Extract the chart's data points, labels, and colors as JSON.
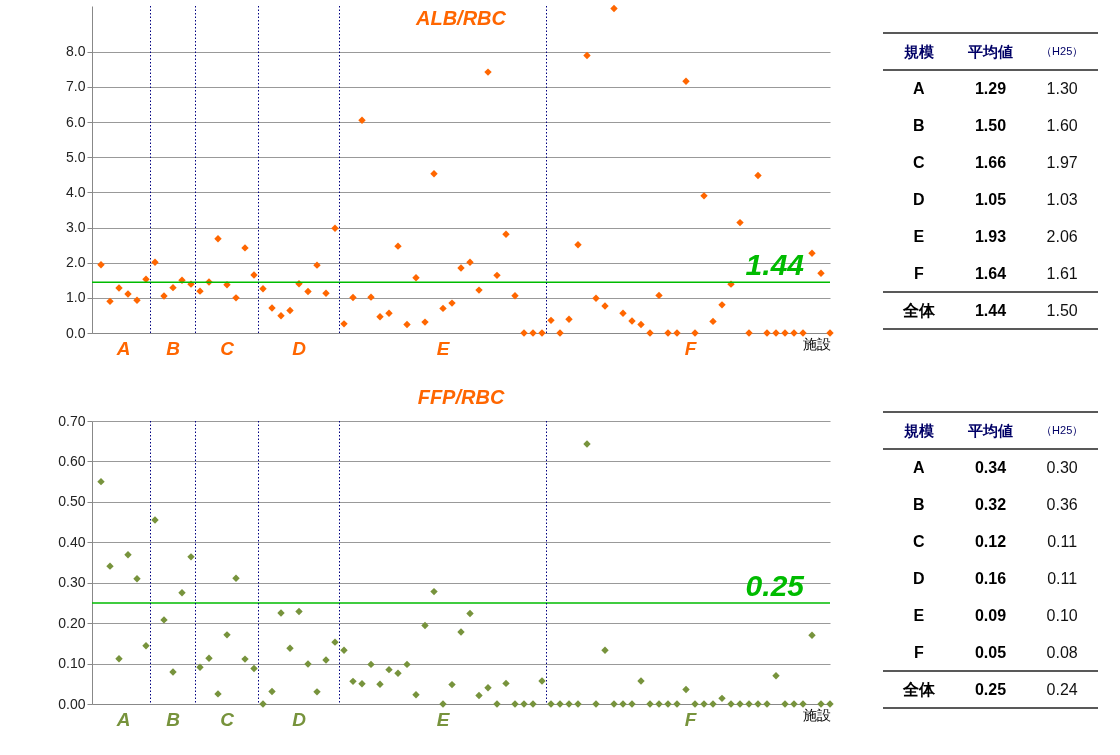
{
  "chart_data": [
    {
      "type": "scatter",
      "title": "ALB/RBC",
      "xlabel": "施設",
      "marker": "diamond",
      "grid": true,
      "tick_labels": "y",
      "categories": [
        null,
        null,
        null,
        null,
        null,
        null,
        null,
        null,
        null,
        null,
        null,
        null,
        null,
        null,
        null,
        null,
        null,
        null,
        null,
        null,
        null,
        null,
        null,
        null,
        null,
        null,
        null,
        null,
        null,
        null,
        null,
        null,
        null,
        null,
        null,
        null,
        null,
        null,
        null,
        null,
        null,
        null,
        null,
        null,
        null,
        null,
        null,
        null,
        null,
        null,
        null,
        null,
        null,
        null,
        null,
        null,
        null,
        null,
        null,
        null,
        null,
        null,
        null,
        null,
        null,
        null,
        null,
        null,
        null,
        null,
        null,
        null,
        null,
        null,
        null,
        null,
        null,
        null,
        null,
        null,
        null,
        null
      ],
      "series": [
        {
          "name": "A",
          "color": "#ff6600",
          "values": [
            1.94,
            0.9,
            1.28,
            1.11,
            0.93,
            1.53,
            null,
            null,
            null,
            null,
            null,
            null,
            null,
            null,
            null,
            null,
            null,
            null,
            null,
            null,
            null,
            null,
            null,
            null,
            null,
            null,
            null,
            null,
            null,
            null,
            null,
            null,
            null,
            null,
            null,
            null,
            null,
            null,
            null,
            null,
            null,
            null,
            null,
            null,
            null,
            null,
            null,
            null,
            null,
            null,
            null,
            null,
            null,
            null,
            null,
            null,
            null,
            null,
            null,
            null,
            null,
            null,
            null,
            null,
            null,
            null,
            null,
            null,
            null,
            null,
            null,
            null,
            null,
            null,
            null,
            null,
            null,
            null,
            null,
            null,
            null,
            null
          ]
        },
        {
          "name": "B",
          "color": "#ff6600",
          "values": [
            null,
            null,
            null,
            null,
            null,
            null,
            2.01,
            1.05,
            1.29,
            1.5,
            1.39,
            null,
            null,
            null,
            null,
            null,
            null,
            null,
            null,
            null,
            null,
            null,
            null,
            null,
            null,
            null,
            null,
            null,
            null,
            null,
            null,
            null,
            null,
            null,
            null,
            null,
            null,
            null,
            null,
            null,
            null,
            null,
            null,
            null,
            null,
            null,
            null,
            null,
            null,
            null,
            null,
            null,
            null,
            null,
            null,
            null,
            null,
            null,
            null,
            null,
            null,
            null,
            null,
            null,
            null,
            null,
            null,
            null,
            null,
            null,
            null,
            null,
            null,
            null,
            null,
            null,
            null,
            null,
            null,
            null,
            null,
            null
          ]
        },
        {
          "name": "C",
          "color": "#ff6600",
          "values": [
            null,
            null,
            null,
            null,
            null,
            null,
            null,
            null,
            null,
            null,
            null,
            1.19,
            1.45,
            2.68,
            1.37,
            1.0,
            2.42,
            1.65,
            null,
            null,
            null,
            null,
            null,
            null,
            null,
            null,
            null,
            null,
            null,
            null,
            null,
            null,
            null,
            null,
            null,
            null,
            null,
            null,
            null,
            null,
            null,
            null,
            null,
            null,
            null,
            null,
            null,
            null,
            null,
            null,
            null,
            null,
            null,
            null,
            null,
            null,
            null,
            null,
            null,
            null,
            null,
            null,
            null,
            null,
            null,
            null,
            null,
            null,
            null,
            null,
            null,
            null,
            null,
            null,
            null,
            null,
            null,
            null,
            null,
            null,
            null,
            null
          ]
        },
        {
          "name": "D",
          "color": "#ff6600",
          "values": [
            null,
            null,
            null,
            null,
            null,
            null,
            null,
            null,
            null,
            null,
            null,
            null,
            null,
            null,
            null,
            null,
            null,
            null,
            1.26,
            0.71,
            0.49,
            0.64,
            1.4,
            1.18,
            1.93,
            1.13,
            2.98,
            null,
            null,
            null,
            null,
            null,
            null,
            null,
            null,
            null,
            null,
            null,
            null,
            null,
            null,
            null,
            null,
            null,
            null,
            null,
            null,
            null,
            null,
            null,
            null,
            null,
            null,
            null,
            null,
            null,
            null,
            null,
            null,
            null,
            null,
            null,
            null,
            null,
            null,
            null,
            null,
            null,
            null,
            null,
            null,
            null,
            null,
            null,
            null,
            null,
            null,
            null,
            null,
            null,
            null,
            null
          ]
        },
        {
          "name": "E",
          "color": "#ff6600",
          "values": [
            null,
            null,
            null,
            null,
            null,
            null,
            null,
            null,
            null,
            null,
            null,
            null,
            null,
            null,
            null,
            null,
            null,
            null,
            null,
            null,
            null,
            null,
            null,
            null,
            null,
            null,
            null,
            0.26,
            1.01,
            6.05,
            1.02,
            0.46,
            0.56,
            2.47,
            0.24,
            1.57,
            0.31,
            4.53,
            0.7,
            0.85,
            1.85,
            2.01,
            1.22,
            7.42,
            1.64,
            2.81,
            1.06,
            0,
            0,
            0,
            null,
            null,
            null,
            null,
            null,
            null,
            null,
            null,
            null,
            null,
            null,
            null,
            null,
            null,
            null,
            null,
            null,
            null,
            null,
            null,
            null,
            null,
            null,
            null,
            null,
            null,
            null,
            null,
            null,
            null,
            null,
            null
          ]
        },
        {
          "name": "F",
          "color": "#ff6600",
          "values": [
            null,
            null,
            null,
            null,
            null,
            null,
            null,
            null,
            null,
            null,
            null,
            null,
            null,
            null,
            null,
            null,
            null,
            null,
            null,
            null,
            null,
            null,
            null,
            null,
            null,
            null,
            null,
            null,
            null,
            null,
            null,
            null,
            null,
            null,
            null,
            null,
            null,
            null,
            null,
            null,
            null,
            null,
            null,
            null,
            null,
            null,
            null,
            null,
            null,
            null,
            0.36,
            0,
            0.39,
            2.51,
            7.89,
            0.99,
            0.77,
            9.23,
            0.56,
            0.34,
            0.24,
            0,
            1.07,
            0,
            0,
            7.16,
            0,
            3.9,
            0.33,
            0.8,
            1.39,
            3.14,
            0,
            4.48,
            0,
            0,
            0,
            0,
            0,
            2.27,
            1.7,
            0
          ]
        }
      ],
      "ylim": [
        0,
        9.3
      ],
      "yticks": [
        {
          "value": 0,
          "label": "0.0"
        },
        {
          "value": 1,
          "label": "1.0"
        },
        {
          "value": 2,
          "label": "2.0"
        },
        {
          "value": 3,
          "label": "3.0"
        },
        {
          "value": 4,
          "label": "4.0"
        },
        {
          "value": 5,
          "label": "5.0"
        },
        {
          "value": 6,
          "label": "6.0"
        },
        {
          "value": 7,
          "label": "7.0"
        },
        {
          "value": 8,
          "label": "8.0"
        }
      ],
      "ref_lines": [
        {
          "axis": "y",
          "value": 1.44,
          "label": "1.44",
          "color": "#00bb00"
        }
      ]
    },
    {
      "type": "other",
      "annotations": [
        "規模",
        "平均値",
        "（H25）",
        "A",
        "1.29",
        "1.30",
        "B",
        "1.50",
        "1.60",
        "C",
        "1.66",
        "1.97",
        "D",
        "1.05",
        "1.03",
        "E",
        "1.93",
        "2.06",
        "F",
        "1.64",
        "1.61",
        "全体",
        "1.44",
        "1.50"
      ]
    },
    {
      "type": "scatter",
      "title": "FFP/RBC",
      "xlabel": "施設",
      "marker": "diamond",
      "grid": true,
      "tick_labels": "y",
      "categories": [
        null,
        null,
        null,
        null,
        null,
        null,
        null,
        null,
        null,
        null,
        null,
        null,
        null,
        null,
        null,
        null,
        null,
        null,
        null,
        null,
        null,
        null,
        null,
        null,
        null,
        null,
        null,
        null,
        null,
        null,
        null,
        null,
        null,
        null,
        null,
        null,
        null,
        null,
        null,
        null,
        null,
        null,
        null,
        null,
        null,
        null,
        null,
        null,
        null,
        null,
        null,
        null,
        null,
        null,
        null,
        null,
        null,
        null,
        null,
        null,
        null,
        null,
        null,
        null,
        null,
        null,
        null,
        null,
        null,
        null,
        null,
        null,
        null,
        null,
        null,
        null,
        null,
        null,
        null,
        null,
        null,
        null
      ],
      "series": [
        {
          "name": "A",
          "color": "#77933c",
          "values": [
            0.55,
            0.341,
            0.112,
            0.369,
            0.31,
            0.144,
            null,
            null,
            null,
            null,
            null,
            null,
            null,
            null,
            null,
            null,
            null,
            null,
            null,
            null,
            null,
            null,
            null,
            null,
            null,
            null,
            null,
            null,
            null,
            null,
            null,
            null,
            null,
            null,
            null,
            null,
            null,
            null,
            null,
            null,
            null,
            null,
            null,
            null,
            null,
            null,
            null,
            null,
            null,
            null,
            null,
            null,
            null,
            null,
            null,
            null,
            null,
            null,
            null,
            null,
            null,
            null,
            null,
            null,
            null,
            null,
            null,
            null,
            null,
            null,
            null,
            null,
            null,
            null,
            null,
            null,
            null,
            null,
            null,
            null,
            null,
            null
          ]
        },
        {
          "name": "B",
          "color": "#77933c",
          "values": [
            null,
            null,
            null,
            null,
            null,
            null,
            0.455,
            0.208,
            0.079,
            0.275,
            0.364,
            null,
            null,
            null,
            null,
            null,
            null,
            null,
            null,
            null,
            null,
            null,
            null,
            null,
            null,
            null,
            null,
            null,
            null,
            null,
            null,
            null,
            null,
            null,
            null,
            null,
            null,
            null,
            null,
            null,
            null,
            null,
            null,
            null,
            null,
            null,
            null,
            null,
            null,
            null,
            null,
            null,
            null,
            null,
            null,
            null,
            null,
            null,
            null,
            null,
            null,
            null,
            null,
            null,
            null,
            null,
            null,
            null,
            null,
            null,
            null,
            null,
            null,
            null,
            null,
            null,
            null,
            null,
            null,
            null,
            null,
            null
          ]
        },
        {
          "name": "C",
          "color": "#77933c",
          "values": [
            null,
            null,
            null,
            null,
            null,
            null,
            null,
            null,
            null,
            null,
            null,
            0.091,
            0.113,
            0.025,
            0.171,
            0.311,
            0.111,
            0.088,
            null,
            null,
            null,
            null,
            null,
            null,
            null,
            null,
            null,
            null,
            null,
            null,
            null,
            null,
            null,
            null,
            null,
            null,
            null,
            null,
            null,
            null,
            null,
            null,
            null,
            null,
            null,
            null,
            null,
            null,
            null,
            null,
            null,
            null,
            null,
            null,
            null,
            null,
            null,
            null,
            null,
            null,
            null,
            null,
            null,
            null,
            null,
            null,
            null,
            null,
            null,
            null,
            null,
            null,
            null,
            null,
            null,
            null,
            null,
            null,
            null,
            null,
            null,
            null
          ]
        },
        {
          "name": "D",
          "color": "#77933c",
          "values": [
            null,
            null,
            null,
            null,
            null,
            null,
            null,
            null,
            null,
            null,
            null,
            null,
            null,
            null,
            null,
            null,
            null,
            null,
            0,
            0.031,
            0.225,
            0.138,
            0.229,
            0.099,
            0.03,
            0.109,
            0.153,
            null,
            null,
            null,
            null,
            null,
            null,
            null,
            null,
            null,
            null,
            null,
            null,
            null,
            null,
            null,
            null,
            null,
            null,
            null,
            null,
            null,
            null,
            null,
            null,
            null,
            null,
            null,
            null,
            null,
            null,
            null,
            null,
            null,
            null,
            null,
            null,
            null,
            null,
            null,
            null,
            null,
            null,
            null,
            null,
            null,
            null,
            null,
            null,
            null,
            null,
            null,
            null,
            null,
            null,
            null
          ]
        },
        {
          "name": "E",
          "color": "#77933c",
          "values": [
            null,
            null,
            null,
            null,
            null,
            null,
            null,
            null,
            null,
            null,
            null,
            null,
            null,
            null,
            null,
            null,
            null,
            null,
            null,
            null,
            null,
            null,
            null,
            null,
            null,
            null,
            null,
            0.133,
            0.056,
            0.05,
            0.098,
            0.049,
            0.085,
            0.076,
            0.098,
            0.023,
            0.194,
            0.278,
            0,
            0.048,
            0.178,
            0.224,
            0.021,
            0.04,
            0,
            0.051,
            0,
            0,
            0,
            0.057,
            null,
            null,
            null,
            null,
            null,
            null,
            null,
            null,
            null,
            null,
            null,
            null,
            null,
            null,
            null,
            null,
            null,
            null,
            null,
            null,
            null,
            null,
            null,
            null,
            null,
            null,
            null,
            null,
            null,
            null,
            null,
            null
          ]
        },
        {
          "name": "F",
          "color": "#77933c",
          "values": [
            null,
            null,
            null,
            null,
            null,
            null,
            null,
            null,
            null,
            null,
            null,
            null,
            null,
            null,
            null,
            null,
            null,
            null,
            null,
            null,
            null,
            null,
            null,
            null,
            null,
            null,
            null,
            null,
            null,
            null,
            null,
            null,
            null,
            null,
            null,
            null,
            null,
            null,
            null,
            null,
            null,
            null,
            null,
            null,
            null,
            null,
            null,
            null,
            null,
            null,
            0,
            0,
            0,
            0,
            0.643,
            0,
            0.133,
            0,
            0,
            0,
            0.057,
            0,
            0,
            0,
            0,
            0.036,
            0,
            0,
            0,
            0.014,
            0,
            0,
            0,
            0,
            0,
            0.07,
            0,
            0,
            0,
            0.17,
            0,
            0
          ]
        }
      ],
      "ylim": [
        0,
        0.7
      ],
      "yticks": [
        {
          "value": 0,
          "label": "0.00"
        },
        {
          "value": 0.1,
          "label": "0.10"
        },
        {
          "value": 0.2,
          "label": "0.20"
        },
        {
          "value": 0.3,
          "label": "0.30"
        },
        {
          "value": 0.4,
          "label": "0.40"
        },
        {
          "value": 0.5,
          "label": "0.50"
        },
        {
          "value": 0.6,
          "label": "0.60"
        },
        {
          "value": 0.7,
          "label": "0.70"
        }
      ],
      "ref_lines": [
        {
          "axis": "y",
          "value": 0.25,
          "label": "0.25",
          "color": "#00bb00"
        }
      ]
    },
    {
      "type": "other",
      "annotations": [
        "規模",
        "平均値",
        "（H25）",
        "A",
        "0.34",
        "0.30",
        "B",
        "0.32",
        "0.36",
        "C",
        "0.12",
        "0.11",
        "D",
        "0.16",
        "0.11",
        "E",
        "0.09",
        "0.10",
        "F",
        "0.05",
        "0.08",
        "全体",
        "0.25",
        "0.24"
      ]
    }
  ]
}
